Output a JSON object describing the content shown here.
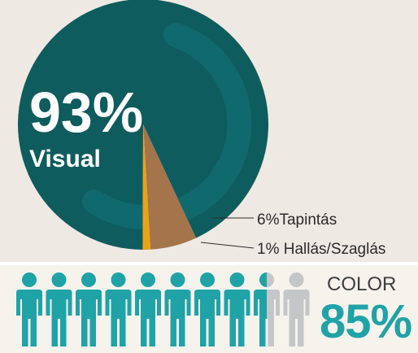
{
  "chart_data": [
    {
      "type": "pie",
      "slices": [
        {
          "label": "Visual",
          "value": 93,
          "value_text": "93%",
          "color": "#0f5c5e"
        },
        {
          "label": "Tapintás",
          "value": 6,
          "value_text": "6%Tapintás",
          "color": "#a4744a"
        },
        {
          "label": "Hallás/Szaglás",
          "value": 1,
          "value_text": "1% Hallás/Szaglás",
          "color": "#e8a316"
        }
      ]
    },
    {
      "type": "pictogram",
      "label": "COLOR",
      "value": 85,
      "value_text": "85%",
      "total_icons": 10,
      "filled_color": "#1fa3a7",
      "empty_color": "#c4c6c8"
    }
  ]
}
